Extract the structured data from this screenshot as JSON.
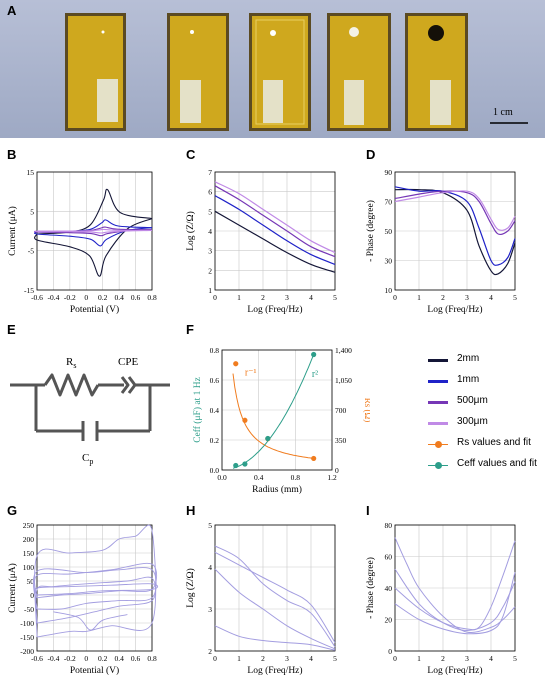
{
  "panels": {
    "A": "A",
    "B": "B",
    "C": "C",
    "D": "D",
    "E": "E",
    "F": "F",
    "G": "G",
    "H": "H",
    "I": "I"
  },
  "photo": {
    "scale_bar_label": "1 cm",
    "background": "#a9b3cb",
    "strip_color": "#c9a41a"
  },
  "colors": {
    "2mm": "#141637",
    "1mm": "#1f22c8",
    "500um": "#7637b6",
    "300um": "#c08ae6",
    "rs": "#f07c1f",
    "ceff": "#2d9e8a",
    "gray_series": "#a39de0"
  },
  "legend": [
    {
      "label": "2mm",
      "color": "#141637",
      "kind": "line"
    },
    {
      "label": "1mm",
      "color": "#1f22c8",
      "kind": "line"
    },
    {
      "label": "500μm",
      "color": "#7637b6",
      "kind": "line"
    },
    {
      "label": "300μm",
      "color": "#c08ae6",
      "kind": "line"
    },
    {
      "label": "Rs values and fit",
      "color": "#f07c1f",
      "kind": "marker"
    },
    {
      "label": "Ceff values and fit",
      "color": "#2d9e8a",
      "kind": "marker"
    }
  ],
  "circuit": {
    "rs": "Rs",
    "cpe": "CPE",
    "cp": "Cp"
  },
  "chart_data": [
    {
      "panel": "B",
      "type": "line",
      "xlabel": "Potential (V)",
      "ylabel": "Current (μA)",
      "xlim": [
        -0.6,
        0.8
      ],
      "ylim": [
        -15,
        15
      ],
      "xticks": [
        "-0.6",
        "-0.4",
        "-0.2",
        "0",
        "0.2",
        "0.4",
        "0.6",
        "0.8"
      ],
      "yticks": [
        "15",
        "5",
        "-5",
        "-15"
      ],
      "series": [
        {
          "color": "2mm",
          "peak_anodic": [
            0.26,
            10.5
          ],
          "peak_cathodic": [
            0.16,
            -11.5
          ]
        },
        {
          "color": "1mm",
          "peak_anodic": [
            0.24,
            2.8
          ],
          "peak_cathodic": [
            0.17,
            -3.8
          ]
        },
        {
          "color": "500um",
          "peak_anodic": [
            0.23,
            1.0
          ],
          "peak_cathodic": [
            0.18,
            -1.2
          ]
        },
        {
          "color": "300um",
          "peak_anodic": [
            0.22,
            0.4
          ],
          "peak_cathodic": [
            0.18,
            -0.5
          ]
        }
      ]
    },
    {
      "panel": "C",
      "type": "line",
      "xlabel": "Log (Freq/Hz)",
      "ylabel": "Log (Z/Ω)",
      "xlim": [
        0,
        5
      ],
      "ylim": [
        1,
        7
      ],
      "xticks": [
        "0",
        "1",
        "2",
        "3",
        "4",
        "5"
      ],
      "yticks": [
        "1",
        "2",
        "3",
        "4",
        "5",
        "6",
        "7"
      ],
      "series": [
        {
          "color": "2mm",
          "points": [
            [
              0,
              5.0
            ],
            [
              1,
              4.3
            ],
            [
              2,
              3.6
            ],
            [
              3,
              2.9
            ],
            [
              4,
              2.3
            ],
            [
              5,
              1.9
            ]
          ]
        },
        {
          "color": "1mm",
          "points": [
            [
              0,
              5.8
            ],
            [
              1,
              5.1
            ],
            [
              2,
              4.3
            ],
            [
              3,
              3.5
            ],
            [
              4,
              2.8
            ],
            [
              5,
              2.3
            ]
          ]
        },
        {
          "color": "500um",
          "points": [
            [
              0,
              6.3
            ],
            [
              1,
              5.6
            ],
            [
              2,
              4.8
            ],
            [
              3,
              4.0
            ],
            [
              4,
              3.2
            ],
            [
              5,
              2.7
            ]
          ]
        },
        {
          "color": "300um",
          "points": [
            [
              0,
              6.5
            ],
            [
              1,
              5.9
            ],
            [
              2,
              5.1
            ],
            [
              3,
              4.3
            ],
            [
              4,
              3.5
            ],
            [
              5,
              2.9
            ]
          ]
        }
      ]
    },
    {
      "panel": "D",
      "type": "line",
      "xlabel": "Log (Freq/Hz)",
      "ylabel": "- Phase (degree)",
      "xlim": [
        0,
        5
      ],
      "ylim": [
        10,
        90
      ],
      "xticks": [
        "0",
        "1",
        "2",
        "3",
        "4",
        "5"
      ],
      "yticks": [
        "10",
        "30",
        "50",
        "70",
        "90"
      ],
      "series": [
        {
          "color": "2mm",
          "points": [
            [
              0,
              78
            ],
            [
              1,
              78
            ],
            [
              2,
              76
            ],
            [
              3,
              64
            ],
            [
              3.5,
              40
            ],
            [
              4,
              23
            ],
            [
              4.3,
              21
            ],
            [
              4.7,
              28
            ],
            [
              5,
              42
            ]
          ]
        },
        {
          "color": "1mm",
          "points": [
            [
              0,
              80
            ],
            [
              1,
              77
            ],
            [
              2,
              77
            ],
            [
              3,
              70
            ],
            [
              3.5,
              52
            ],
            [
              4,
              30
            ],
            [
              4.3,
              27
            ],
            [
              4.7,
              32
            ],
            [
              5,
              45
            ]
          ]
        },
        {
          "color": "500um",
          "points": [
            [
              0,
              72
            ],
            [
              1,
              75
            ],
            [
              2,
              77
            ],
            [
              3,
              76
            ],
            [
              3.5,
              70
            ],
            [
              4,
              55
            ],
            [
              4.3,
              48
            ],
            [
              4.7,
              50
            ],
            [
              5,
              57
            ]
          ]
        },
        {
          "color": "300um",
          "points": [
            [
              0,
              70
            ],
            [
              1,
              73
            ],
            [
              2,
              76
            ],
            [
              3,
              77
            ],
            [
              3.5,
              72
            ],
            [
              4,
              58
            ],
            [
              4.3,
              51
            ],
            [
              4.7,
              52
            ],
            [
              5,
              60
            ]
          ]
        }
      ]
    },
    {
      "panel": "F",
      "type": "scatter",
      "xlabel": "Radius (mm)",
      "ylabel": "Ceff (μF) at 1 Hz",
      "y2label": "Rs (Ω)",
      "xlim": [
        0,
        1.2
      ],
      "ylim": [
        0,
        0.8
      ],
      "y2lim": [
        0,
        1400
      ],
      "xticks": [
        "0.0",
        "0.4",
        "0.8",
        "1.2"
      ],
      "yticks": [
        "0.0",
        "0.2",
        "0.4",
        "0.6",
        "0.8"
      ],
      "y2ticks": [
        "0",
        "350",
        "700",
        "1,050",
        "1,400"
      ],
      "rs_fit_label": "r⁻¹",
      "ceff_fit_label": "r²",
      "rs_points": [
        [
          0.15,
          1240
        ],
        [
          0.25,
          580
        ],
        [
          0.5,
          365
        ],
        [
          1.0,
          135
        ]
      ],
      "ceff_points": [
        [
          0.15,
          0.03
        ],
        [
          0.25,
          0.04
        ],
        [
          0.5,
          0.21
        ],
        [
          1.0,
          0.77
        ]
      ]
    },
    {
      "panel": "G",
      "type": "line",
      "xlabel": "Potential (V)",
      "ylabel": "Current (μA)",
      "xlim": [
        -0.6,
        0.8
      ],
      "ylim": [
        -200,
        250
      ],
      "xticks": [
        "-0.6",
        "-0.4",
        "-0.2",
        "0",
        "0.2",
        "0.4",
        "0.6",
        "0.8"
      ],
      "yticks": [
        "250",
        "200",
        "150",
        "100",
        "50",
        "0",
        "-50",
        "-100",
        "-150",
        "-200"
      ]
    },
    {
      "panel": "H",
      "type": "line",
      "xlabel": "Log (Freq/Hz)",
      "ylabel": "Log (Z/Ω)",
      "xlim": [
        0,
        5
      ],
      "ylim": [
        2,
        5
      ],
      "xticks": [
        "0",
        "1",
        "2",
        "3",
        "4",
        "5"
      ],
      "yticks": [
        "2",
        "3",
        "4",
        "5"
      ],
      "series": [
        {
          "points": [
            [
              0,
              4.5
            ],
            [
              1,
              4.2
            ],
            [
              2,
              3.6
            ],
            [
              3,
              3.2
            ],
            [
              4,
              2.9
            ],
            [
              5,
              2.1
            ]
          ]
        },
        {
          "points": [
            [
              0,
              4.35
            ],
            [
              1,
              4.05
            ],
            [
              2,
              3.75
            ],
            [
              3,
              3.45
            ],
            [
              4,
              3.1
            ],
            [
              5,
              2.2
            ]
          ]
        },
        {
          "points": [
            [
              0,
              3.95
            ],
            [
              1,
              3.4
            ],
            [
              2,
              3.0
            ],
            [
              3,
              2.6
            ],
            [
              4,
              2.3
            ],
            [
              5,
              2.05
            ]
          ]
        },
        {
          "points": [
            [
              0,
              2.6
            ],
            [
              1,
              2.35
            ],
            [
              2,
              2.25
            ],
            [
              3,
              2.2
            ],
            [
              4,
              2.15
            ],
            [
              5,
              2.02
            ]
          ]
        }
      ]
    },
    {
      "panel": "I",
      "type": "line",
      "xlabel": "Log (Freq/Hz)",
      "ylabel": "- Phase (degree)",
      "xlim": [
        0,
        5
      ],
      "ylim": [
        0,
        80
      ],
      "xticks": [
        "0",
        "1",
        "2",
        "3",
        "4",
        "5"
      ],
      "yticks": [
        "0",
        "20",
        "40",
        "60",
        "80"
      ],
      "series": [
        {
          "points": [
            [
              0,
              72
            ],
            [
              0.5,
              55
            ],
            [
              1,
              40
            ],
            [
              2,
              22
            ],
            [
              3,
              12
            ],
            [
              4,
              15
            ],
            [
              4.5,
              20
            ],
            [
              5,
              28
            ]
          ]
        },
        {
          "points": [
            [
              0,
              52
            ],
            [
              1,
              30
            ],
            [
              2,
              18
            ],
            [
              3,
              13
            ],
            [
              4,
              18
            ],
            [
              4.5,
              28
            ],
            [
              5,
              44
            ]
          ]
        },
        {
          "points": [
            [
              0,
              40
            ],
            [
              1,
              27
            ],
            [
              2,
              18
            ],
            [
              3,
              14
            ],
            [
              3.5,
              15
            ],
            [
              4,
              28
            ],
            [
              4.5,
              48
            ],
            [
              5,
              70
            ]
          ]
        },
        {
          "points": [
            [
              0,
              30
            ],
            [
              1,
              20
            ],
            [
              2,
              14
            ],
            [
              3,
              11
            ],
            [
              4,
              13
            ],
            [
              4.5,
              22
            ],
            [
              5,
              50
            ]
          ]
        }
      ]
    }
  ]
}
